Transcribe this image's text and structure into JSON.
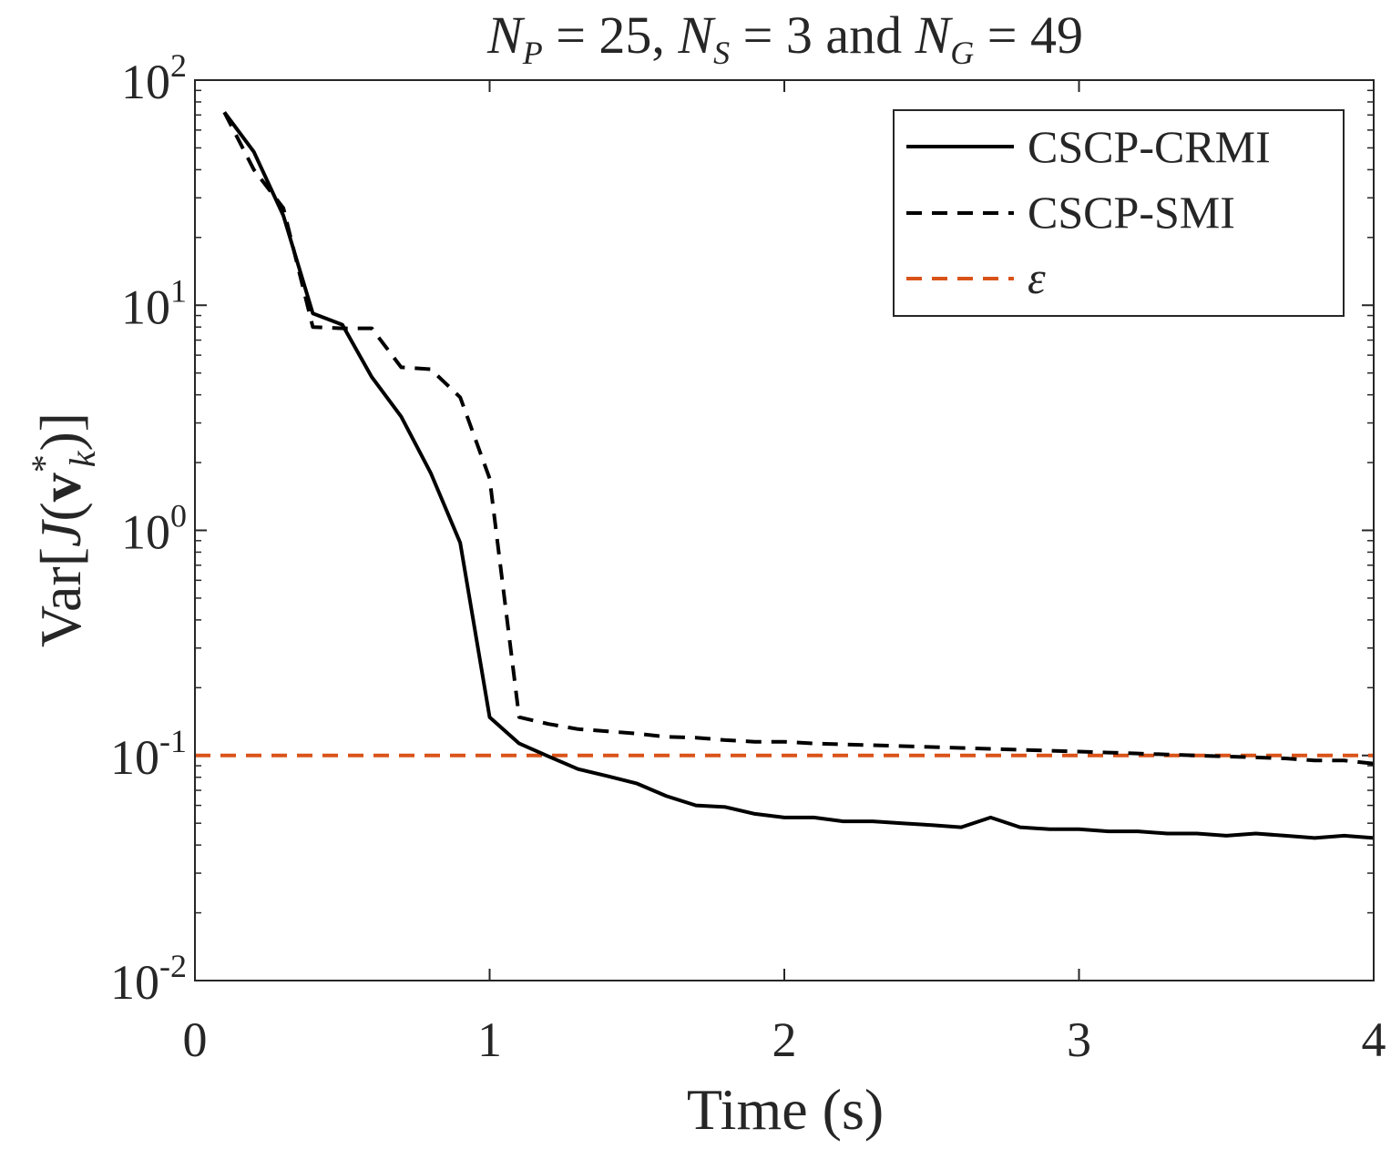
{
  "chart_data": {
    "type": "line",
    "title": {
      "prefix": "N",
      "sub1": "P",
      "part1": " = 25, ",
      "n2": "N",
      "sub2": "S",
      "part2": " = 3 and ",
      "n3": "N",
      "sub3": "G",
      "part3": " = 49"
    },
    "xlabel": "Time (s)",
    "ylabel": {
      "prefix": "Var[",
      "J": "J",
      "open": "(",
      "v": "v",
      "sup": "*",
      "sub": "k",
      "close": ")]"
    },
    "xlim": [
      0,
      4
    ],
    "ylim": [
      0.01,
      100
    ],
    "yscale": "log",
    "x_ticks": [
      {
        "value": 0,
        "label": "0"
      },
      {
        "value": 1,
        "label": "1"
      },
      {
        "value": 2,
        "label": "2"
      },
      {
        "value": 3,
        "label": "3"
      },
      {
        "value": 4,
        "label": "4"
      }
    ],
    "y_ticks": [
      {
        "value": 0.01,
        "base": "10",
        "exp": "-2"
      },
      {
        "value": 0.1,
        "base": "10",
        "exp": "-1"
      },
      {
        "value": 1,
        "base": "10",
        "exp": "0"
      },
      {
        "value": 10,
        "base": "10",
        "exp": "1"
      },
      {
        "value": 100,
        "base": "10",
        "exp": "2"
      }
    ],
    "legend_position": "top-right",
    "series": [
      {
        "name": "CSCP-CRMI",
        "color": "#000000",
        "style": "solid",
        "x": [
          0.1,
          0.2,
          0.3,
          0.4,
          0.5,
          0.6,
          0.7,
          0.8,
          0.9,
          1.0,
          1.1,
          1.2,
          1.3,
          1.4,
          1.5,
          1.6,
          1.7,
          1.8,
          1.9,
          2.0,
          2.1,
          2.2,
          2.3,
          2.4,
          2.5,
          2.6,
          2.7,
          2.8,
          2.9,
          3.0,
          3.1,
          3.2,
          3.3,
          3.4,
          3.5,
          3.6,
          3.7,
          3.8,
          3.9,
          4.0
        ],
        "values": [
          72,
          48,
          25,
          9.2,
          8.2,
          4.8,
          3.2,
          1.8,
          0.88,
          0.148,
          0.113,
          0.099,
          0.087,
          0.081,
          0.075,
          0.066,
          0.06,
          0.059,
          0.055,
          0.053,
          0.053,
          0.051,
          0.051,
          0.05,
          0.049,
          0.048,
          0.053,
          0.048,
          0.047,
          0.047,
          0.046,
          0.046,
          0.045,
          0.045,
          0.044,
          0.045,
          0.044,
          0.043,
          0.044,
          0.043
        ]
      },
      {
        "name": "CSCP-SMI",
        "color": "#000000",
        "style": "dashed",
        "x": [
          0.1,
          0.2,
          0.3,
          0.4,
          0.5,
          0.6,
          0.7,
          0.8,
          0.9,
          1.0,
          1.1,
          1.2,
          1.3,
          1.4,
          1.5,
          1.6,
          1.7,
          1.8,
          1.9,
          2.0,
          2.1,
          2.2,
          2.3,
          2.4,
          2.5,
          2.6,
          2.7,
          2.8,
          2.9,
          3.0,
          3.1,
          3.2,
          3.3,
          3.4,
          3.5,
          3.6,
          3.7,
          3.8,
          3.9,
          4.0
        ],
        "values": [
          72,
          40,
          27,
          8.0,
          7.9,
          7.9,
          5.3,
          5.2,
          3.9,
          1.7,
          0.148,
          0.138,
          0.131,
          0.128,
          0.125,
          0.121,
          0.12,
          0.117,
          0.115,
          0.115,
          0.113,
          0.112,
          0.111,
          0.11,
          0.109,
          0.108,
          0.107,
          0.106,
          0.105,
          0.104,
          0.103,
          0.102,
          0.101,
          0.1,
          0.099,
          0.098,
          0.097,
          0.095,
          0.095,
          0.092
        ]
      },
      {
        "name": "ε",
        "color": "#D95319",
        "style": "dashed",
        "x": [
          0.0,
          4.0
        ],
        "values": [
          0.1,
          0.1
        ]
      }
    ]
  }
}
